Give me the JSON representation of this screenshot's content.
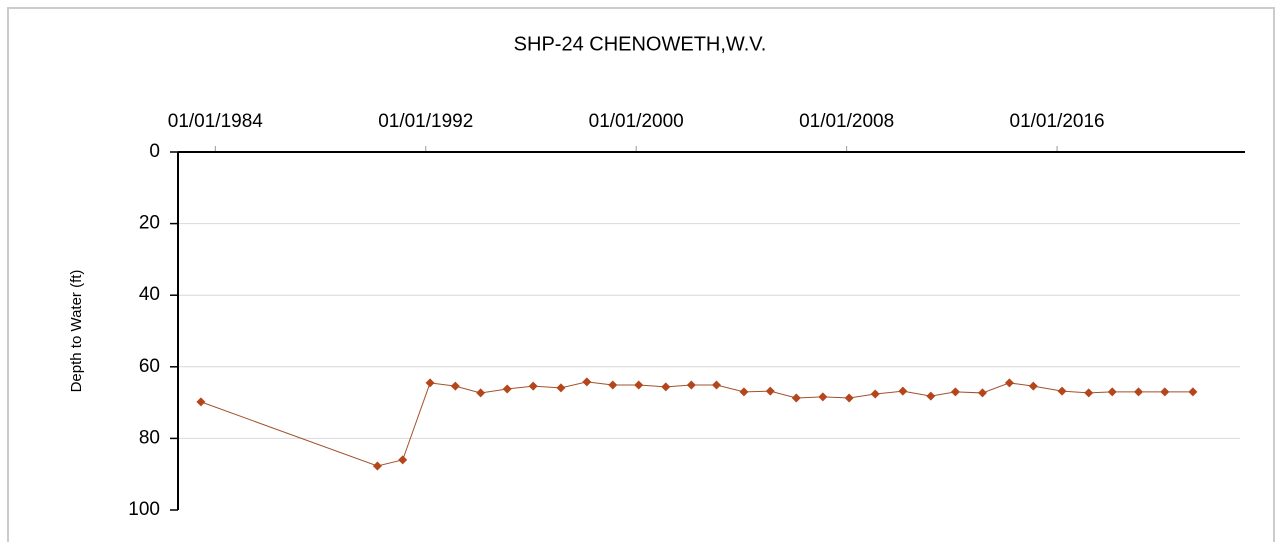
{
  "chart_data": {
    "type": "line",
    "title": "SHP-24  CHENOWETH,W.V.",
    "y_label": "Depth to Water (ft)",
    "x": [
      "1983-06-15",
      "1990-03-01",
      "1991-02-15",
      "1992-03-01",
      "1993-02-15",
      "1994-02-01",
      "1995-02-05",
      "1996-02-01",
      "1997-02-20",
      "1998-02-15",
      "1999-02-10",
      "2000-02-05",
      "2001-02-15",
      "2002-02-05",
      "2003-01-20",
      "2004-02-05",
      "2005-02-05",
      "2006-02-01",
      "2007-02-05",
      "2008-02-05",
      "2009-02-01",
      "2010-02-20",
      "2011-03-15",
      "2012-02-20",
      "2013-03-01",
      "2014-03-10",
      "2015-02-05",
      "2016-03-10",
      "2017-03-15",
      "2018-02-05",
      "2019-02-05",
      "2020-02-05",
      "2021-03-01"
    ],
    "series": [
      {
        "name": "Depth to Water",
        "color": "#a0522d",
        "marker_color": "#b5451b",
        "values": [
          69.8,
          87.7,
          86,
          64.5,
          65.4,
          67.3,
          66.2,
          65.4,
          65.9,
          64.2,
          65.1,
          65.1,
          65.6,
          65.1,
          65.1,
          67,
          66.8,
          68.7,
          68.4,
          68.7,
          67.6,
          66.8,
          68.2,
          67,
          67.3,
          64.5,
          65.4,
          66.8,
          67.3,
          67,
          67,
          67,
          67
        ]
      }
    ],
    "xlim": [
      "1982-08-01",
      "2022-12-15"
    ],
    "xticks": [
      {
        "value": "1984-01-01",
        "label": "01/01/1984"
      },
      {
        "value": "1992-01-01",
        "label": "01/01/1992"
      },
      {
        "value": "2000-01-01",
        "label": "01/01/2000"
      },
      {
        "value": "2008-01-01",
        "label": "01/01/2008"
      },
      {
        "value": "2016-01-01",
        "label": "01/01/2016"
      }
    ],
    "ylim": [
      0,
      100
    ],
    "yticks": [
      0,
      20,
      40,
      60,
      80,
      100
    ],
    "y_inverted": true,
    "x_axis_position": "top",
    "grid": true
  }
}
